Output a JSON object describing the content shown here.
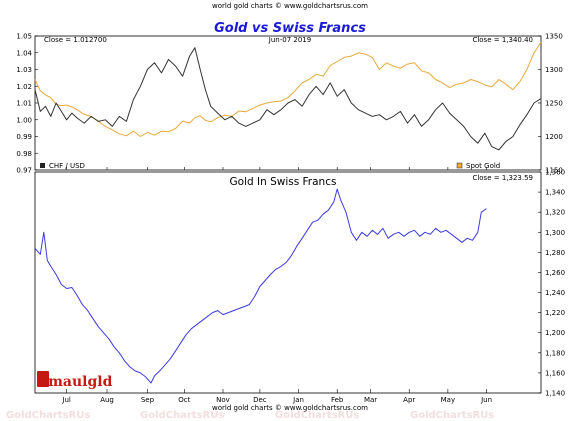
{
  "header": {
    "credit_top": "world gold charts © www.goldchartsrus.com",
    "credit_bottom": "world gold charts © www.goldchartsrus.com",
    "watermark": "GoldChartsRUs"
  },
  "logo": {
    "text": "Smaulgld"
  },
  "chart_data": [
    {
      "type": "line",
      "title": "Gold vs Swiss Francs",
      "date_label": "Jun-07  2019",
      "left_axis": {
        "label": "CHF / USD",
        "close_label": "Close = 1.012700",
        "close_value": 1.0127,
        "ylim": [
          0.97,
          1.05
        ],
        "ticks": [
          0.97,
          0.98,
          0.99,
          1.0,
          1.01,
          1.02,
          1.03,
          1.04,
          1.05
        ],
        "tick_labels": [
          "0.97",
          "0.98",
          "0.99",
          "1.00",
          "1.01",
          "1.02",
          "1.03",
          "1.04",
          "1.05"
        ]
      },
      "right_axis": {
        "label": "Spot Gold",
        "close_label": "Close = 1,340.40",
        "close_value": 1340.4,
        "ylim": [
          1150,
          1350
        ],
        "ticks": [
          1150,
          1200,
          1250,
          1300,
          1350
        ],
        "tick_labels": [
          "1150",
          "1200",
          "1250",
          "1300",
          "1350"
        ]
      },
      "series": [
        {
          "name": "CHF / USD",
          "color": "#333333",
          "axis": "left",
          "points": [
            [
              0,
              1.018
            ],
            [
              3,
              1.005
            ],
            [
              6,
              1.008
            ],
            [
              9,
              1.002
            ],
            [
              12,
              1.01
            ],
            [
              15,
              1.005
            ],
            [
              18,
              1.0
            ],
            [
              21,
              1.004
            ],
            [
              24,
              1.001
            ],
            [
              28,
              0.998
            ],
            [
              32,
              1.002
            ],
            [
              36,
              0.999
            ],
            [
              40,
              1.0
            ],
            [
              44,
              0.996
            ],
            [
              48,
              1.002
            ],
            [
              52,
              0.999
            ],
            [
              56,
              1.012
            ],
            [
              60,
              1.02
            ],
            [
              64,
              1.03
            ],
            [
              68,
              1.034
            ],
            [
              72,
              1.028
            ],
            [
              76,
              1.036
            ],
            [
              80,
              1.032
            ],
            [
              84,
              1.026
            ],
            [
              88,
              1.038
            ],
            [
              91,
              1.043
            ],
            [
              94,
              1.03
            ],
            [
              97,
              1.018
            ],
            [
              100,
              1.008
            ],
            [
              104,
              1.004
            ],
            [
              108,
              1.0
            ],
            [
              112,
              1.002
            ],
            [
              116,
              0.998
            ],
            [
              120,
              0.996
            ],
            [
              124,
              0.998
            ],
            [
              128,
              1.0
            ],
            [
              132,
              1.006
            ],
            [
              136,
              1.003
            ],
            [
              140,
              1.006
            ],
            [
              144,
              1.01
            ],
            [
              148,
              1.012
            ],
            [
              152,
              1.008
            ],
            [
              156,
              1.015
            ],
            [
              160,
              1.02
            ],
            [
              164,
              1.015
            ],
            [
              168,
              1.022
            ],
            [
              172,
              1.014
            ],
            [
              176,
              1.018
            ],
            [
              180,
              1.01
            ],
            [
              184,
              1.006
            ],
            [
              188,
              1.004
            ],
            [
              192,
              1.002
            ],
            [
              196,
              1.003
            ],
            [
              200,
              1.0
            ],
            [
              204,
              1.002
            ],
            [
              208,
              1.005
            ],
            [
              212,
              0.998
            ],
            [
              216,
              1.003
            ],
            [
              220,
              0.996
            ],
            [
              224,
              1.0
            ],
            [
              228,
              1.006
            ],
            [
              232,
              1.01
            ],
            [
              236,
              1.004
            ],
            [
              240,
              1.0
            ],
            [
              244,
              0.996
            ],
            [
              248,
              0.99
            ],
            [
              252,
              0.986
            ],
            [
              256,
              0.992
            ],
            [
              260,
              0.984
            ],
            [
              264,
              0.982
            ],
            [
              268,
              0.987
            ],
            [
              272,
              0.99
            ],
            [
              276,
              0.997
            ],
            [
              280,
              1.003
            ],
            [
              284,
              1.01
            ],
            [
              288,
              1.0127
            ]
          ]
        },
        {
          "name": "Spot Gold",
          "color": "#e8a93a",
          "axis": "right",
          "points": [
            [
              0,
              1285
            ],
            [
              3,
              1268
            ],
            [
              6,
              1262
            ],
            [
              9,
              1258
            ],
            [
              12,
              1248
            ],
            [
              15,
              1246
            ],
            [
              18,
              1247
            ],
            [
              21,
              1244
            ],
            [
              24,
              1240
            ],
            [
              28,
              1233
            ],
            [
              32,
              1230
            ],
            [
              36,
              1223
            ],
            [
              40,
              1215
            ],
            [
              44,
              1210
            ],
            [
              48,
              1204
            ],
            [
              52,
              1201
            ],
            [
              56,
              1208
            ],
            [
              60,
              1200
            ],
            [
              64,
              1206
            ],
            [
              68,
              1202
            ],
            [
              72,
              1208
            ],
            [
              76,
              1207
            ],
            [
              80,
              1212
            ],
            [
              84,
              1223
            ],
            [
              88,
              1220
            ],
            [
              91,
              1228
            ],
            [
              94,
              1231
            ],
            [
              97,
              1224
            ],
            [
              100,
              1222
            ],
            [
              104,
              1228
            ],
            [
              108,
              1232
            ],
            [
              112,
              1230
            ],
            [
              116,
              1238
            ],
            [
              120,
              1237
            ],
            [
              124,
              1242
            ],
            [
              128,
              1247
            ],
            [
              132,
              1250
            ],
            [
              136,
              1252
            ],
            [
              140,
              1253
            ],
            [
              144,
              1258
            ],
            [
              148,
              1268
            ],
            [
              152,
              1280
            ],
            [
              156,
              1285
            ],
            [
              160,
              1293
            ],
            [
              164,
              1290
            ],
            [
              168,
              1306
            ],
            [
              172,
              1312
            ],
            [
              176,
              1318
            ],
            [
              180,
              1320
            ],
            [
              184,
              1325
            ],
            [
              188,
              1323
            ],
            [
              192,
              1318
            ],
            [
              196,
              1300
            ],
            [
              200,
              1310
            ],
            [
              204,
              1305
            ],
            [
              208,
              1302
            ],
            [
              212,
              1308
            ],
            [
              216,
              1310
            ],
            [
              220,
              1298
            ],
            [
              224,
              1295
            ],
            [
              228,
              1285
            ],
            [
              232,
              1280
            ],
            [
              236,
              1273
            ],
            [
              240,
              1278
            ],
            [
              244,
              1280
            ],
            [
              248,
              1285
            ],
            [
              252,
              1282
            ],
            [
              256,
              1277
            ],
            [
              260,
              1274
            ],
            [
              264,
              1285
            ],
            [
              268,
              1278
            ],
            [
              272,
              1270
            ],
            [
              276,
              1282
            ],
            [
              280,
              1300
            ],
            [
              284,
              1325
            ],
            [
              288,
              1340.4
            ]
          ]
        }
      ],
      "x": {
        "range": [
          0,
          288
        ]
      }
    },
    {
      "type": "line",
      "title": "Gold In Swiss Francs",
      "close_label": "Close = 1,323.59",
      "close_value": 1323.59,
      "ylim": [
        1140,
        1360
      ],
      "ticks": [
        1140,
        1160,
        1180,
        1200,
        1220,
        1240,
        1260,
        1280,
        1300,
        1320,
        1340,
        1360
      ],
      "tick_labels": [
        "1,140",
        "1,160",
        "1,180",
        "1,200",
        "1,220",
        "1,240",
        "1,260",
        "1,280",
        "1,300",
        "1,320",
        "1,340",
        "1,360"
      ],
      "x_ticks": [
        {
          "pos": 18,
          "label": "Jul"
        },
        {
          "pos": 41,
          "label": "Aug"
        },
        {
          "pos": 64,
          "label": "Sep"
        },
        {
          "pos": 85,
          "label": "Oct"
        },
        {
          "pos": 107,
          "label": "Nov"
        },
        {
          "pos": 128,
          "label": "Dec"
        },
        {
          "pos": 150,
          "label": "Jan"
        },
        {
          "pos": 172,
          "label": "Feb"
        },
        {
          "pos": 191,
          "label": "Mar"
        },
        {
          "pos": 213,
          "label": "Apr"
        },
        {
          "pos": 235,
          "label": "May"
        },
        {
          "pos": 257,
          "label": "Jun"
        }
      ],
      "series": [
        {
          "name": "Gold In Swiss Francs",
          "color": "#3b3be0",
          "points": [
            [
              0,
              1284
            ],
            [
              3,
              1278
            ],
            [
              5,
              1300
            ],
            [
              7,
              1272
            ],
            [
              9,
              1266
            ],
            [
              12,
              1258
            ],
            [
              15,
              1248
            ],
            [
              18,
              1244
            ],
            [
              21,
              1245
            ],
            [
              24,
              1237
            ],
            [
              27,
              1228
            ],
            [
              30,
              1222
            ],
            [
              33,
              1214
            ],
            [
              36,
              1206
            ],
            [
              39,
              1200
            ],
            [
              42,
              1194
            ],
            [
              45,
              1186
            ],
            [
              48,
              1180
            ],
            [
              51,
              1172
            ],
            [
              54,
              1166
            ],
            [
              57,
              1162
            ],
            [
              60,
              1160
            ],
            [
              63,
              1156
            ],
            [
              66,
              1150
            ],
            [
              68,
              1157
            ],
            [
              71,
              1162
            ],
            [
              74,
              1168
            ],
            [
              77,
              1174
            ],
            [
              80,
              1182
            ],
            [
              83,
              1190
            ],
            [
              86,
              1198
            ],
            [
              89,
              1204
            ],
            [
              92,
              1208
            ],
            [
              95,
              1212
            ],
            [
              98,
              1216
            ],
            [
              101,
              1220
            ],
            [
              104,
              1222
            ],
            [
              107,
              1218
            ],
            [
              110,
              1220
            ],
            [
              113,
              1222
            ],
            [
              116,
              1224
            ],
            [
              119,
              1226
            ],
            [
              122,
              1228
            ],
            [
              125,
              1236
            ],
            [
              128,
              1246
            ],
            [
              131,
              1252
            ],
            [
              134,
              1258
            ],
            [
              137,
              1263
            ],
            [
              140,
              1266
            ],
            [
              143,
              1270
            ],
            [
              146,
              1277
            ],
            [
              149,
              1286
            ],
            [
              152,
              1294
            ],
            [
              155,
              1302
            ],
            [
              158,
              1310
            ],
            [
              161,
              1312
            ],
            [
              164,
              1318
            ],
            [
              167,
              1322
            ],
            [
              170,
              1330
            ],
            [
              172,
              1343
            ],
            [
              174,
              1332
            ],
            [
              177,
              1320
            ],
            [
              180,
              1300
            ],
            [
              183,
              1292
            ],
            [
              186,
              1300
            ],
            [
              189,
              1296
            ],
            [
              192,
              1302
            ],
            [
              195,
              1298
            ],
            [
              198,
              1304
            ],
            [
              201,
              1294
            ],
            [
              204,
              1298
            ],
            [
              207,
              1300
            ],
            [
              210,
              1296
            ],
            [
              213,
              1300
            ],
            [
              216,
              1302
            ],
            [
              219,
              1296
            ],
            [
              222,
              1300
            ],
            [
              225,
              1298
            ],
            [
              228,
              1304
            ],
            [
              231,
              1300
            ],
            [
              234,
              1302
            ],
            [
              237,
              1298
            ],
            [
              240,
              1294
            ],
            [
              243,
              1290
            ],
            [
              246,
              1294
            ],
            [
              249,
              1292
            ],
            [
              252,
              1300
            ],
            [
              254,
              1320
            ],
            [
              257,
              1323.59
            ]
          ]
        }
      ]
    }
  ]
}
